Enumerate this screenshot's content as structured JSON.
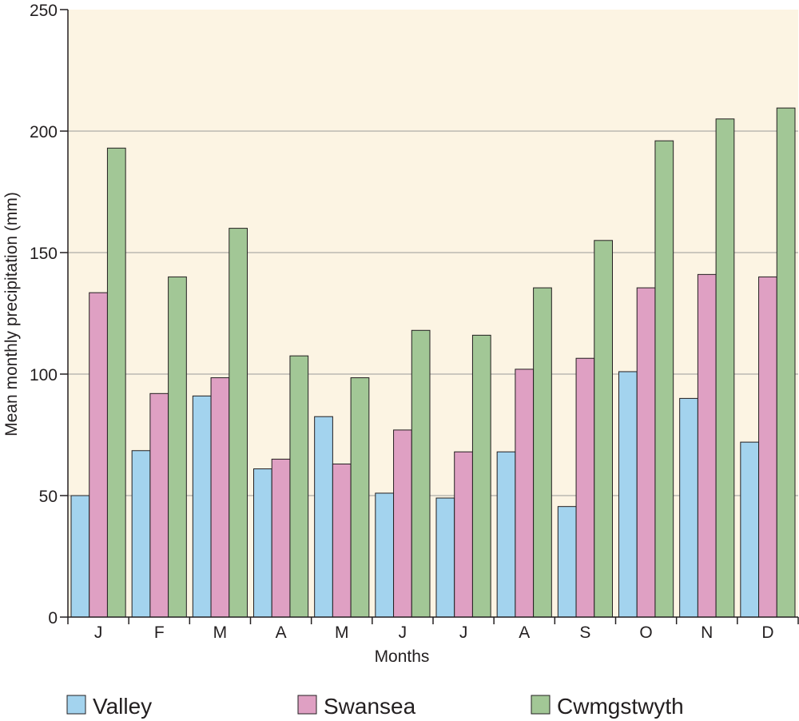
{
  "chart_data": {
    "type": "bar",
    "title": "",
    "xlabel": "Months",
    "ylabel": "Mean monthly precipitation (mm)",
    "ylim": [
      0,
      250
    ],
    "yticks": [
      0,
      50,
      100,
      150,
      200,
      250
    ],
    "grid": "horizontal",
    "legend_position": "bottom",
    "plot_background": "#fcf4e3",
    "categories": [
      "J",
      "F",
      "M",
      "A",
      "M",
      "J",
      "J",
      "A",
      "S",
      "O",
      "N",
      "D"
    ],
    "series": [
      {
        "name": "Valley",
        "color": "#a3d3ee",
        "values": [
          50,
          68.5,
          91,
          61,
          82.5,
          51,
          49,
          68,
          45.5,
          101,
          90,
          72
        ]
      },
      {
        "name": "Swansea",
        "color": "#dfa0c3",
        "values": [
          133.5,
          92,
          98.5,
          65,
          63,
          77,
          68,
          102,
          106.5,
          135.5,
          141,
          140
        ]
      },
      {
        "name": "Cwmgstwyth",
        "color": "#a2c796",
        "values": [
          193,
          140,
          160,
          107.5,
          98.5,
          118,
          116,
          135.5,
          155,
          196,
          205,
          209.5
        ]
      }
    ]
  }
}
